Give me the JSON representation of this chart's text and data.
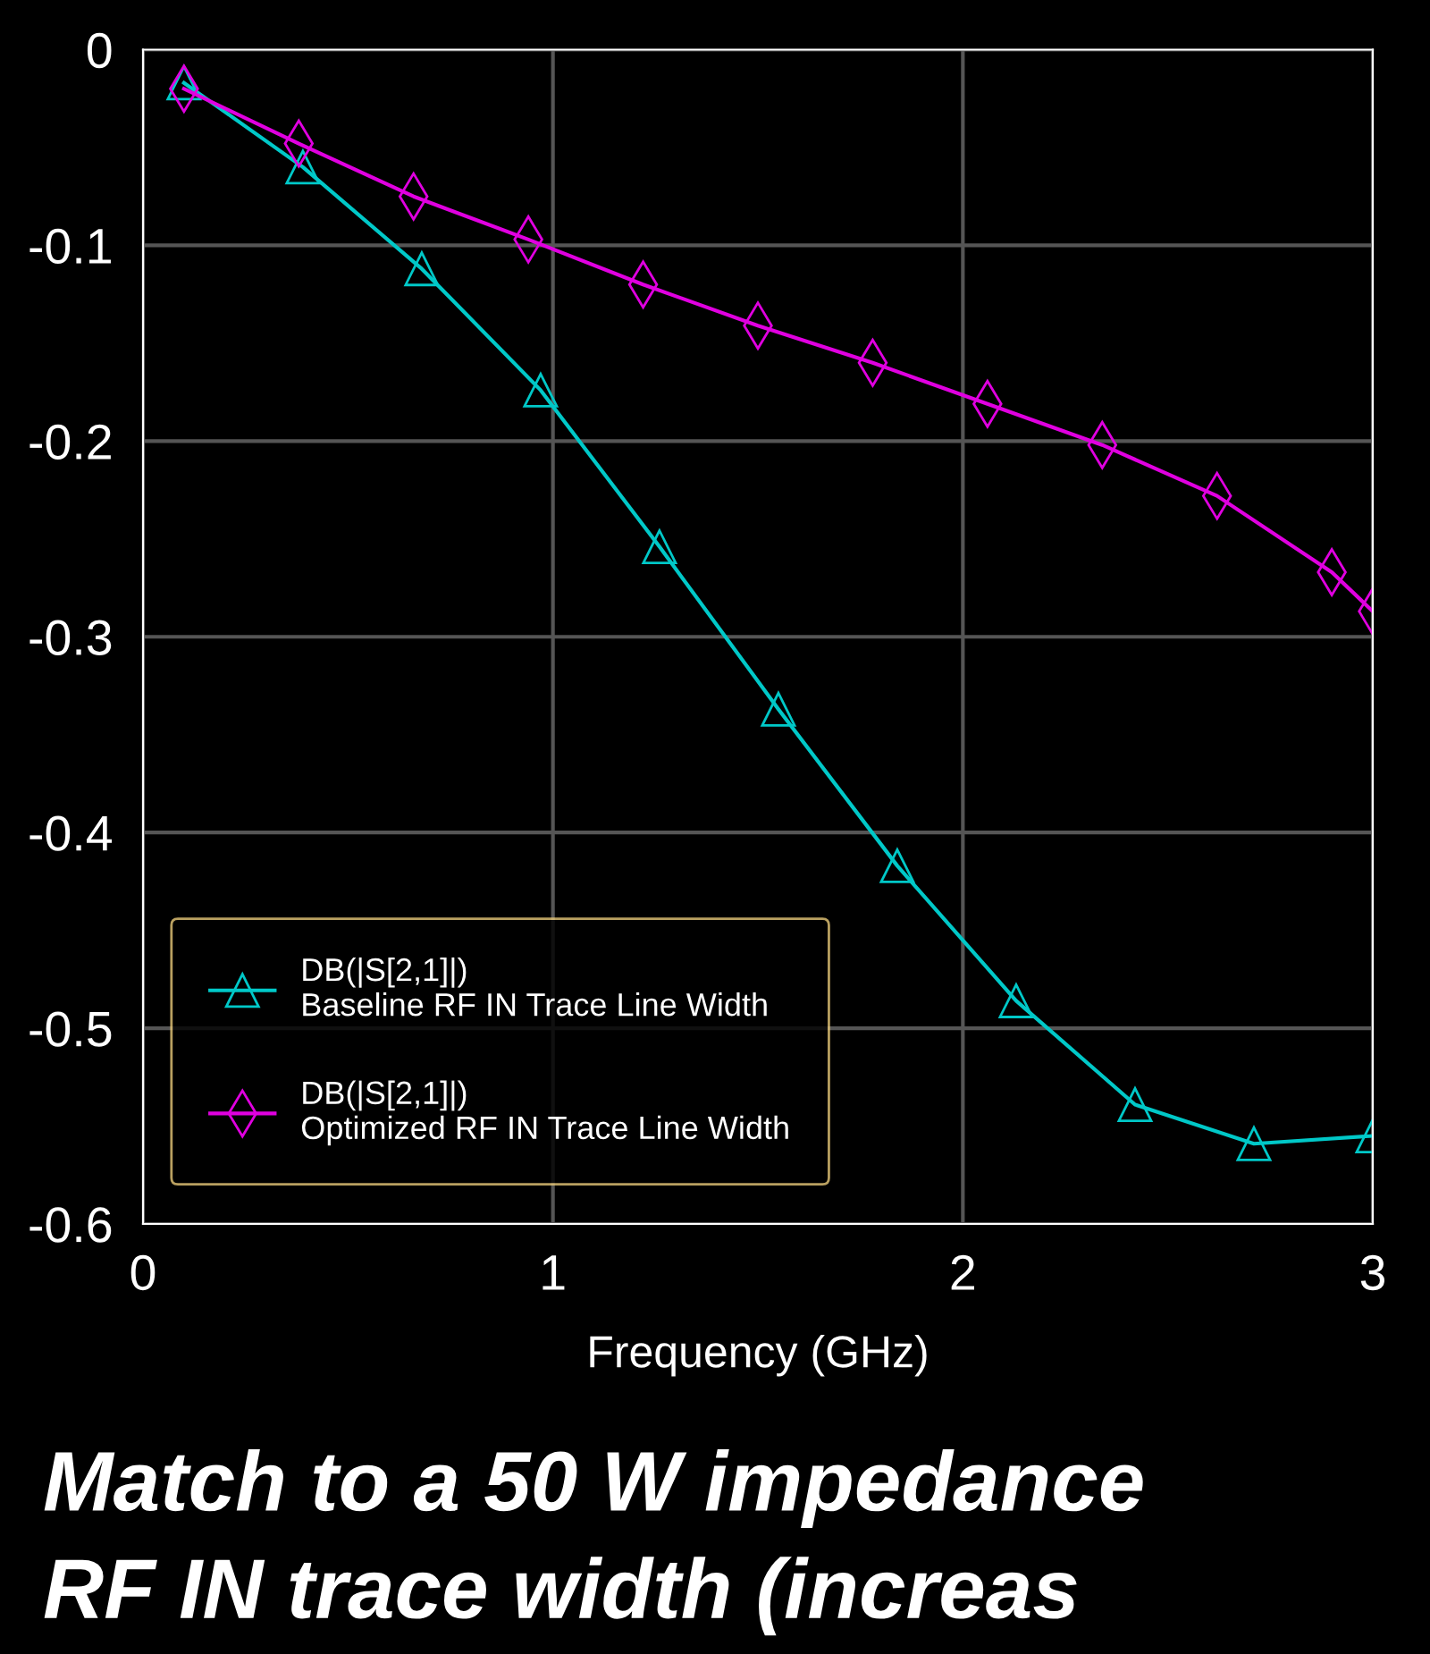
{
  "chart_data": {
    "type": "line",
    "xlabel": "Frequency (GHz)",
    "xlim": [
      0,
      3
    ],
    "xticks": [
      0,
      1,
      2,
      3
    ],
    "ylim": [
      -0.6,
      0
    ],
    "yticks": [
      0,
      -0.1,
      -0.2,
      -0.3,
      -0.4,
      -0.5,
      -0.6
    ],
    "grid": true,
    "legend": "bottom left",
    "line_style": "solid",
    "series": [
      {
        "name": "DB(|S[2,1]|)\nBaseline RF IN Trace Line Width",
        "color": "#00c8c8",
        "marker": "triangle",
        "x": [
          0.1,
          0.39,
          0.68,
          0.97,
          1.26,
          1.55,
          1.84,
          2.13,
          2.42,
          2.71,
          3.0
        ],
        "values": [
          -0.017,
          -0.06,
          -0.112,
          -0.174,
          -0.254,
          -0.337,
          -0.417,
          -0.486,
          -0.539,
          -0.559,
          -0.555
        ]
      },
      {
        "name": "DB(|S[2,1]|)\nOptimized RF IN Trace Line Width",
        "color": "#e000e0",
        "marker": "diamond",
        "x": [
          0.1,
          0.38,
          0.66,
          0.94,
          1.22,
          1.5,
          1.78,
          2.06,
          2.34,
          2.62,
          2.9,
          3.0
        ],
        "values": [
          -0.02,
          -0.048,
          -0.075,
          -0.097,
          -0.12,
          -0.141,
          -0.16,
          -0.181,
          -0.202,
          -0.228,
          -0.267,
          -0.287
        ]
      }
    ],
    "annotations": [
      "Match to a 50 W impedance",
      "RF IN trace width (increas"
    ]
  }
}
